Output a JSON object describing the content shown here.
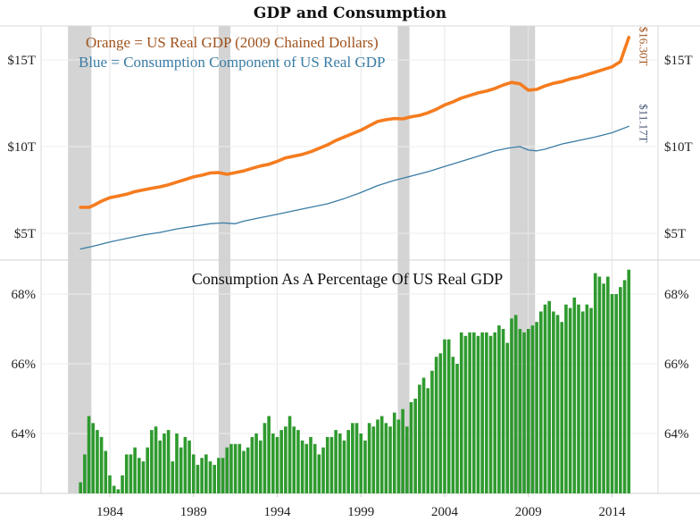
{
  "chart_data": [
    {
      "type": "line",
      "title": "GDP and Consumption",
      "legend": [
        {
          "text": "Orange = US Real GDP (2009 Chained Dollars)",
          "color": "#a0521c"
        },
        {
          "text": "Blue = Consumption Component of US Real GDP",
          "color": "#3a7ca5"
        }
      ],
      "legend_placement": "top-left",
      "yticks": [
        {
          "value": 5,
          "label": "$5T"
        },
        {
          "value": 10,
          "label": "$10T"
        },
        {
          "value": 15,
          "label": "$15T"
        }
      ],
      "ylim": [
        3.5,
        16.9
      ],
      "xlim": [
        1980.0,
        2018.6
      ],
      "grid": true,
      "dual_axis_labels": true,
      "recessions": [
        [
          1981.5,
          1982.9
        ],
        [
          1990.5,
          1991.2
        ],
        [
          2001.2,
          2001.9
        ],
        [
          2007.9,
          2009.4
        ]
      ],
      "series": [
        {
          "name": "US Real GDP",
          "color": "#f57c1f",
          "end_label": "$16.30T",
          "end_label_color": "#a0521c",
          "x": [
            1982.25,
            1982.75,
            1983.0,
            1983.5,
            1984.0,
            1984.5,
            1985.0,
            1985.5,
            1986.0,
            1986.5,
            1987.0,
            1987.5,
            1988.0,
            1988.5,
            1989.0,
            1989.5,
            1990.0,
            1990.5,
            1991.0,
            1991.5,
            1992.0,
            1992.5,
            1993.0,
            1993.5,
            1994.0,
            1994.5,
            1995.0,
            1995.5,
            1996.0,
            1996.5,
            1997.0,
            1997.5,
            1998.0,
            1998.5,
            1999.0,
            1999.5,
            2000.0,
            2000.5,
            2001.0,
            2001.5,
            2002.0,
            2002.5,
            2003.0,
            2003.5,
            2004.0,
            2004.5,
            2005.0,
            2005.5,
            2006.0,
            2006.5,
            2007.0,
            2007.5,
            2008.0,
            2008.5,
            2009.0,
            2009.5,
            2010.0,
            2010.5,
            2011.0,
            2011.5,
            2012.0,
            2012.5,
            2013.0,
            2013.5,
            2014.0,
            2014.5,
            2015.0
          ],
          "values": [
            6.5,
            6.5,
            6.6,
            6.85,
            7.05,
            7.15,
            7.25,
            7.4,
            7.5,
            7.6,
            7.68,
            7.8,
            7.95,
            8.1,
            8.25,
            8.35,
            8.48,
            8.5,
            8.4,
            8.5,
            8.6,
            8.75,
            8.88,
            8.98,
            9.15,
            9.35,
            9.45,
            9.55,
            9.7,
            9.9,
            10.1,
            10.35,
            10.55,
            10.75,
            10.95,
            11.2,
            11.45,
            11.55,
            11.62,
            11.6,
            11.72,
            11.8,
            11.95,
            12.15,
            12.4,
            12.58,
            12.8,
            12.95,
            13.1,
            13.2,
            13.35,
            13.55,
            13.7,
            13.62,
            13.25,
            13.3,
            13.5,
            13.65,
            13.75,
            13.9,
            14.0,
            14.15,
            14.3,
            14.45,
            14.6,
            14.9,
            16.3
          ]
        },
        {
          "name": "Consumption Component",
          "color": "#3a7ca5",
          "end_label": "$11.17T",
          "end_label_color": "#4a5a7a",
          "x": [
            1982.25,
            1983.0,
            1984.0,
            1985.0,
            1986.0,
            1987.0,
            1988.0,
            1989.0,
            1990.0,
            1990.75,
            1991.5,
            1992.0,
            1993.0,
            1994.0,
            1995.0,
            1996.0,
            1997.0,
            1998.0,
            1999.0,
            2000.0,
            2001.0,
            2002.0,
            2003.0,
            2004.0,
            2005.0,
            2006.0,
            2007.0,
            2008.0,
            2008.5,
            2009.0,
            2009.5,
            2010.0,
            2011.0,
            2012.0,
            2013.0,
            2014.0,
            2015.0
          ],
          "values": [
            4.1,
            4.25,
            4.5,
            4.7,
            4.9,
            5.05,
            5.25,
            5.4,
            5.55,
            5.6,
            5.55,
            5.7,
            5.9,
            6.1,
            6.3,
            6.5,
            6.7,
            7.0,
            7.35,
            7.75,
            8.05,
            8.3,
            8.55,
            8.85,
            9.15,
            9.45,
            9.75,
            9.95,
            10.0,
            9.8,
            9.75,
            9.85,
            10.15,
            10.35,
            10.55,
            10.8,
            11.17
          ]
        }
      ]
    },
    {
      "type": "bar",
      "title": "Consumption As A Percentage Of US Real GDP",
      "xlabel": "",
      "ylabel": "",
      "ylim": [
        62.28,
        68.9
      ],
      "xlim": [
        1980.0,
        2018.6
      ],
      "grid": true,
      "color": "#2e9a2e",
      "yticks": [
        {
          "value": 64,
          "label": "64%"
        },
        {
          "value": 66,
          "label": "66%"
        },
        {
          "value": 68,
          "label": "68%"
        }
      ],
      "xticks": [
        "1984",
        "1989",
        "1994",
        "1999",
        "2004",
        "2009",
        "2014"
      ],
      "start_quarter": 1982.25,
      "quarter_step": 0.25,
      "values": [
        62.6,
        63.4,
        64.5,
        64.3,
        64.1,
        63.9,
        63.5,
        62.8,
        62.5,
        62.4,
        62.8,
        63.4,
        63.4,
        63.6,
        63.3,
        63.2,
        63.6,
        64.1,
        64.2,
        63.8,
        64.0,
        64.1,
        63.2,
        64.0,
        63.6,
        63.9,
        63.8,
        63.4,
        63.1,
        63.3,
        63.4,
        63.2,
        63.1,
        63.3,
        63.3,
        63.6,
        63.7,
        63.7,
        63.7,
        63.5,
        63.6,
        63.9,
        64.0,
        63.8,
        64.3,
        64.5,
        64.0,
        63.9,
        64.1,
        64.2,
        64.5,
        64.2,
        64.1,
        63.8,
        63.7,
        63.9,
        63.7,
        63.4,
        63.6,
        63.9,
        63.9,
        64.1,
        64.0,
        63.8,
        64.1,
        64.3,
        64.3,
        64.0,
        63.8,
        64.3,
        64.2,
        64.4,
        64.5,
        64.3,
        64.2,
        64.6,
        64.4,
        64.7,
        64.2,
        64.9,
        65.0,
        65.4,
        65.6,
        65.3,
        65.8,
        66.2,
        66.3,
        66.7,
        66.7,
        66.2,
        66.0,
        66.9,
        66.8,
        66.9,
        66.9,
        66.8,
        66.9,
        66.9,
        66.8,
        66.9,
        67.1,
        67.0,
        66.6,
        67.3,
        67.4,
        67.0,
        66.9,
        67.0,
        67.1,
        67.2,
        67.5,
        67.7,
        67.8,
        67.5,
        67.4,
        67.2,
        67.7,
        67.6,
        67.9,
        67.7,
        67.5,
        67.7,
        67.6,
        68.6,
        68.5,
        68.3,
        68.5,
        68.0,
        68.0,
        68.2,
        68.4,
        68.7
      ],
      "values_note": "quarterly"
    }
  ],
  "labels": {
    "title": "GDP and Consumption",
    "legend_gdp": "Orange = US Real GDP (2009 Chained Dollars)",
    "legend_consumption": "Blue = Consumption Component of US Real GDP",
    "bar_title": "Consumption As A Percentage Of US Real GDP",
    "gdp_end": "$16.30T",
    "cons_end": "$11.17T"
  }
}
